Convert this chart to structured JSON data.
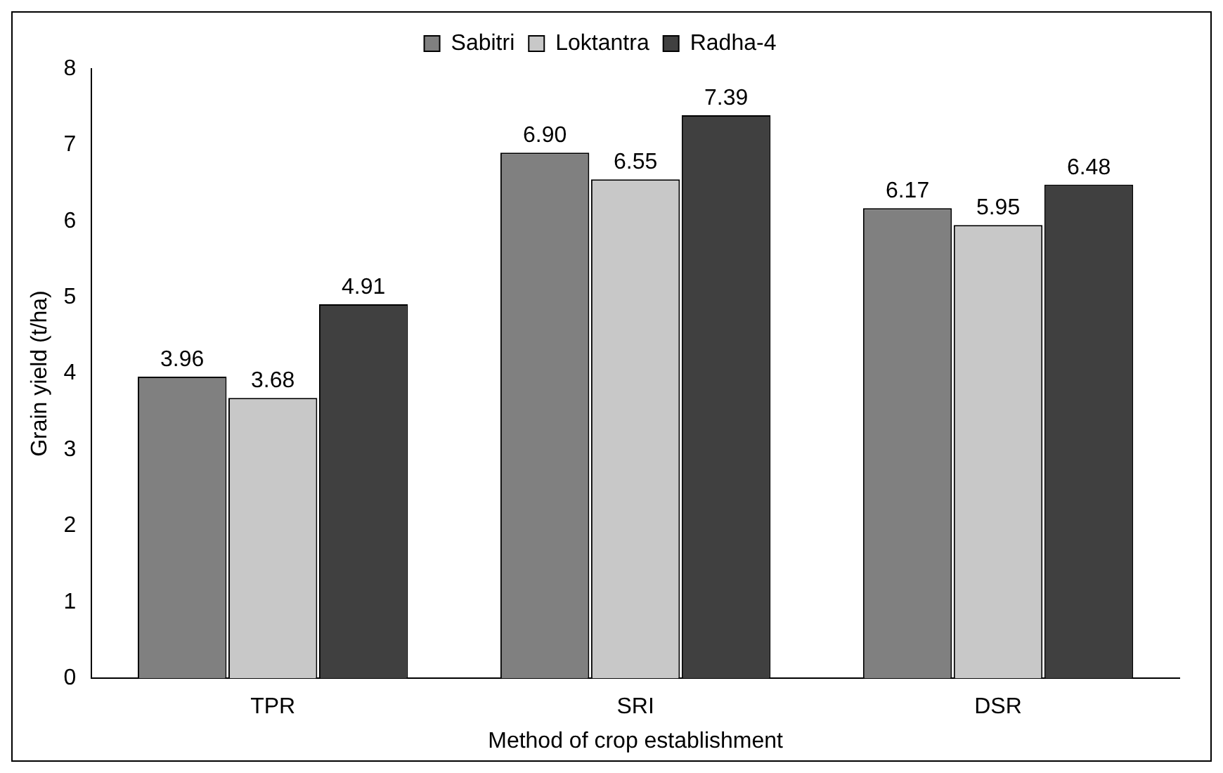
{
  "chart_data": {
    "type": "bar",
    "xlabel": "Method of crop establishment",
    "ylabel": "Grain yield (t/ha)",
    "categories": [
      "TPR",
      "SRI",
      "DSR"
    ],
    "series": [
      {
        "name": "Sabitri",
        "color": "#808080",
        "values": [
          3.96,
          6.9,
          6.17
        ],
        "value_labels": [
          "3.96",
          "6.90",
          "6.17"
        ]
      },
      {
        "name": "Loktantra",
        "color": "#c8c8c8",
        "values": [
          3.68,
          6.55,
          5.95
        ],
        "value_labels": [
          "3.68",
          "6.55",
          "5.95"
        ]
      },
      {
        "name": "Radha-4",
        "color": "#404040",
        "values": [
          4.91,
          7.39,
          6.48
        ],
        "value_labels": [
          "4.91",
          "7.39",
          "6.48"
        ]
      }
    ],
    "ylim": [
      0,
      8
    ],
    "yticks": [
      0,
      1,
      2,
      3,
      4,
      5,
      6,
      7,
      8
    ],
    "grid": false,
    "legend": "top"
  }
}
